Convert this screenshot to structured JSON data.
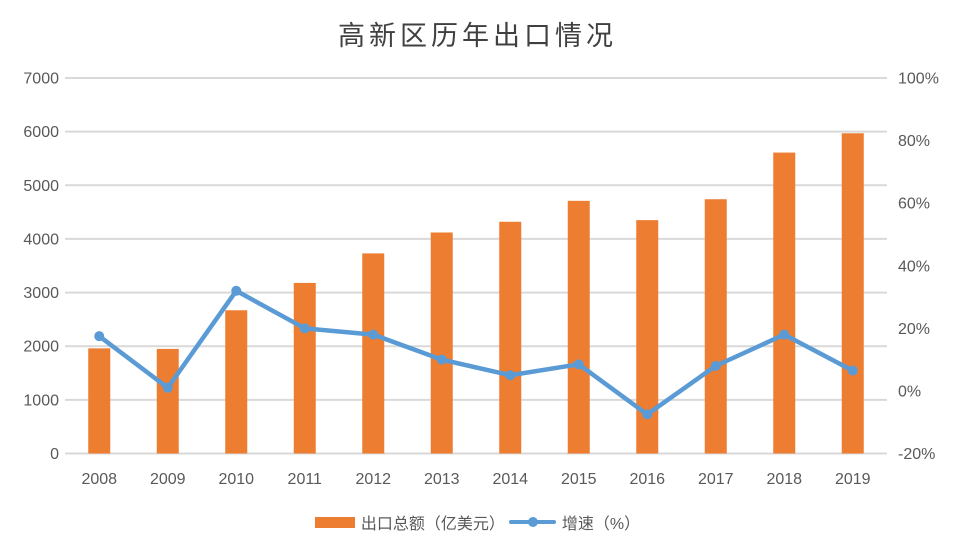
{
  "chart_data": {
    "type": "combo",
    "title": "高新区历年出口情况",
    "categories": [
      "2008",
      "2009",
      "2010",
      "2011",
      "2012",
      "2013",
      "2014",
      "2015",
      "2016",
      "2017",
      "2018",
      "2019"
    ],
    "series": [
      {
        "name": "出口总额（亿美元）",
        "type": "bar",
        "axis": "left",
        "color": "#ED7D31",
        "values": [
          1960,
          1950,
          2670,
          3180,
          3730,
          4120,
          4320,
          4710,
          4350,
          4740,
          5610,
          5970
        ]
      },
      {
        "name": "增速（%）",
        "type": "line",
        "axis": "right",
        "color": "#5B9BD5",
        "values": [
          17.5,
          1,
          32,
          20,
          18,
          10,
          5,
          8.5,
          -7.5,
          8,
          18,
          6.5
        ]
      }
    ],
    "left_axis": {
      "min": 0,
      "max": 7000,
      "step": 1000,
      "tick_labels": [
        "0",
        "1000",
        "2000",
        "3000",
        "4000",
        "5000",
        "6000",
        "7000"
      ]
    },
    "right_axis": {
      "min": -20,
      "max": 100,
      "step": 20,
      "tick_labels": [
        "-20%",
        "0%",
        "20%",
        "40%",
        "60%",
        "80%",
        "100%"
      ]
    },
    "grid": true,
    "legend_position": "bottom",
    "colors": {
      "gridline": "#D9D9D9",
      "axis_text": "#595959",
      "title_text": "#404040",
      "background": "#FFFFFF"
    }
  }
}
